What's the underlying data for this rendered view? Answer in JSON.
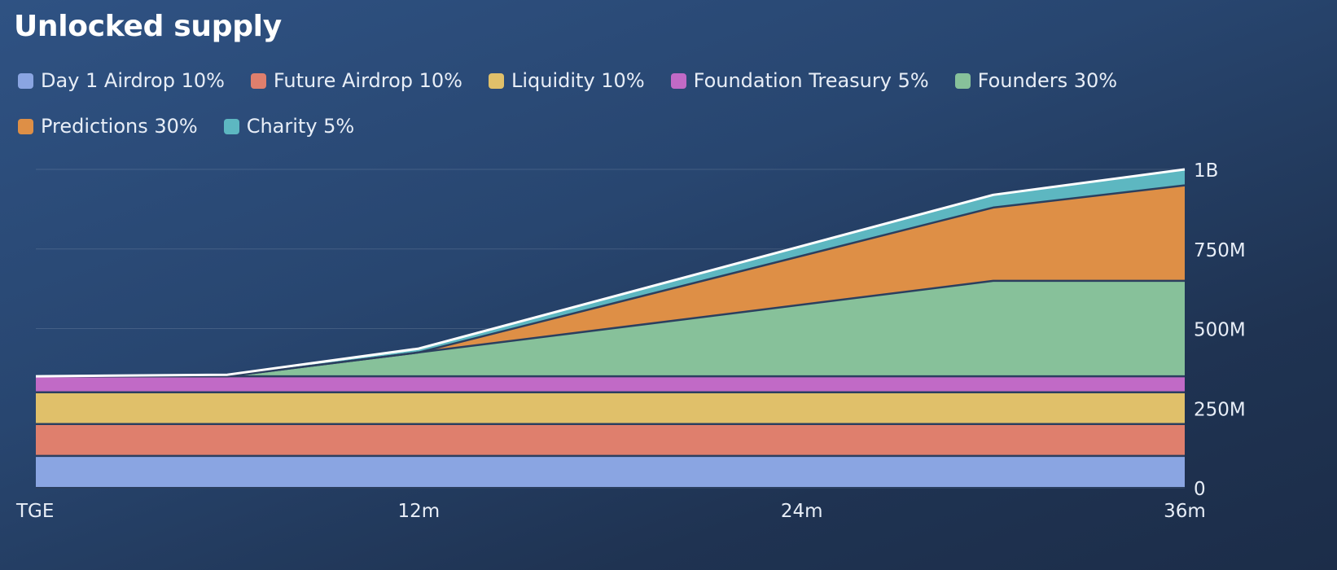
{
  "title": "Unlocked supply",
  "colors": {
    "Day 1 Airdrop 10%": "#8aa5e2",
    "Future Airdrop 10%": "#df7f6d",
    "Liquidity 10%": "#e0c06a",
    "Foundation Treasury 5%": "#c16ac6",
    "Founders 30%": "#87c19a",
    "Predictions 30%": "#de8f46",
    "Charity 5%": "#5db7c1"
  },
  "legend": [
    "Day 1 Airdrop 10%",
    "Future Airdrop 10%",
    "Liquidity 10%",
    "Foundation Treasury 5%",
    "Founders 30%",
    "Predictions 30%",
    "Charity 5%"
  ],
  "chart_data": {
    "type": "area",
    "stacked": true,
    "title": "Unlocked supply",
    "x": [
      0,
      6,
      12,
      30,
      36
    ],
    "x_ticks": [
      {
        "value": 0,
        "label": "TGE"
      },
      {
        "value": 12,
        "label": "12m"
      },
      {
        "value": 24,
        "label": "24m"
      },
      {
        "value": 36,
        "label": "36m"
      }
    ],
    "y_ticks": [
      {
        "value": 0,
        "label": "0"
      },
      {
        "value": 250000000,
        "label": "250M"
      },
      {
        "value": 500000000,
        "label": "500M"
      },
      {
        "value": 750000000,
        "label": "750M"
      },
      {
        "value": 1000000000,
        "label": "1B"
      }
    ],
    "xlim": [
      0,
      36
    ],
    "ylim": [
      0,
      1000000000
    ],
    "y_axis_side": "right",
    "grid": true,
    "legend_position": "top",
    "series": [
      {
        "name": "Day 1 Airdrop 10%",
        "values": [
          100000000,
          100000000,
          100000000,
          100000000,
          100000000
        ]
      },
      {
        "name": "Future Airdrop 10%",
        "values": [
          100000000,
          100000000,
          100000000,
          100000000,
          100000000
        ]
      },
      {
        "name": "Liquidity 10%",
        "values": [
          100000000,
          100000000,
          100000000,
          100000000,
          100000000
        ]
      },
      {
        "name": "Foundation Treasury 5%",
        "values": [
          50000000,
          50000000,
          50000000,
          50000000,
          50000000
        ]
      },
      {
        "name": "Founders 30%",
        "values": [
          0,
          0,
          75000000,
          300000000,
          300000000
        ]
      },
      {
        "name": "Predictions 30%",
        "values": [
          0,
          0,
          0,
          230000000,
          300000000
        ]
      },
      {
        "name": "Charity 5%",
        "values": [
          0,
          5000000,
          12000000,
          40000000,
          50000000
        ]
      }
    ]
  }
}
